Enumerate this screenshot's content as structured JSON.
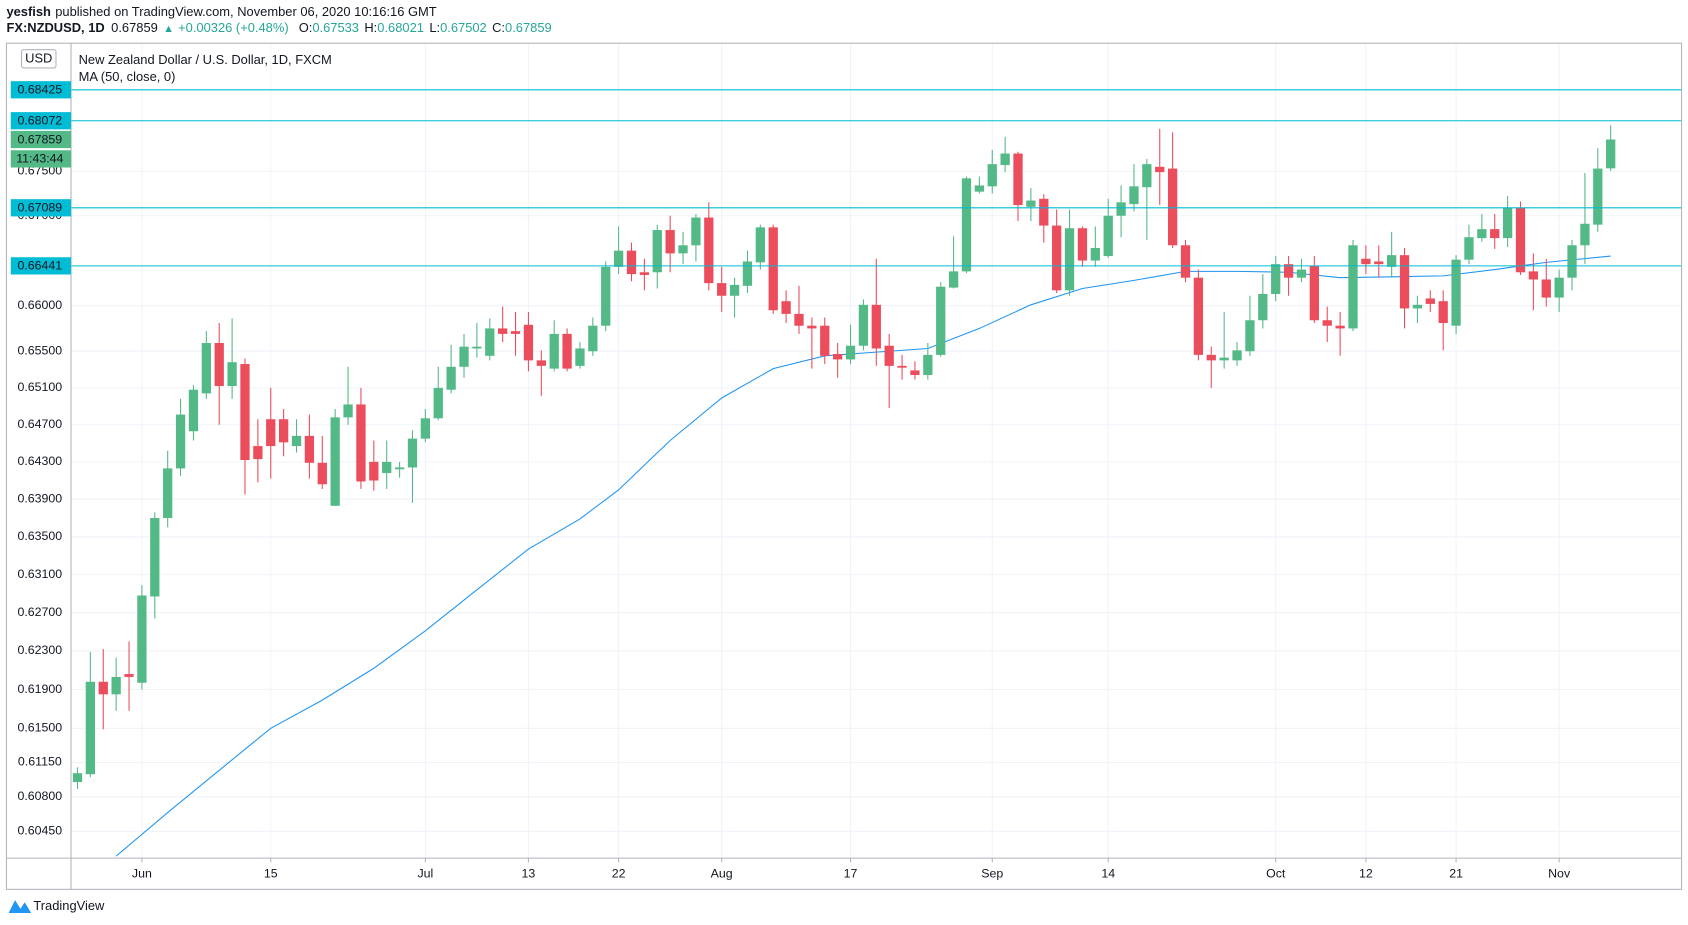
{
  "header": {
    "author": "yesfish",
    "published": "published on TradingView.com, November 06, 2020 10:16:16 GMT",
    "symbol": "FX:NZDUSD, 1D",
    "last": "0.67859",
    "arrow": "▲",
    "change": "+0.00326 (+0.48%)",
    "ohlc": [
      {
        "label": "O:",
        "value": "0.67533"
      },
      {
        "label": "H:",
        "value": "0.68021"
      },
      {
        "label": "L:",
        "value": "0.67502"
      },
      {
        "label": "C:",
        "value": "0.67859"
      }
    ]
  },
  "chart_data": {
    "type": "candlestick",
    "title": "New Zealand Dollar / U.S. Dollar, 1D, FXCM",
    "currency": "USD",
    "up_color": "#53b987",
    "down_color": "#eb4d5c",
    "log_scale": true,
    "grid": true,
    "open": [
      0.6095,
      0.6103,
      0.6198,
      0.6185,
      0.6206,
      0.6197,
      0.6287,
      0.637,
      0.6423,
      0.6463,
      0.6504,
      0.6559,
      0.6512,
      0.6536,
      0.6447,
      0.6476,
      0.6476,
      0.6447,
      0.6458,
      0.6429,
      0.6383,
      0.6478,
      0.6492,
      0.643,
      0.6418,
      0.6422,
      0.6424,
      0.6455,
      0.6477,
      0.6508,
      0.6533,
      0.6553,
      0.6545,
      0.6575,
      0.6572,
      0.6579,
      0.654,
      0.6531,
      0.6569,
      0.6534,
      0.655,
      0.6578,
      0.6643,
      0.6661,
      0.6637,
      0.6637,
      0.6684,
      0.6658,
      0.6667,
      0.6698,
      0.6625,
      0.6611,
      0.6622,
      0.6648,
      0.6687,
      0.6605,
      0.6591,
      0.6578,
      0.6578,
      0.6547,
      0.6541,
      0.6556,
      0.6601,
      0.6556,
      0.6534,
      0.6529,
      0.6524,
      0.6546,
      0.662,
      0.6638,
      0.6727,
      0.6733,
      0.6757,
      0.677,
      0.671,
      0.6719,
      0.6689,
      0.6617,
      0.6686,
      0.665,
      0.6655,
      0.67,
      0.6713,
      0.6732,
      0.6755,
      0.6753,
      0.6667,
      0.6631,
      0.6546,
      0.654,
      0.654,
      0.655,
      0.6584,
      0.6613,
      0.6646,
      0.6631,
      0.6644,
      0.6584,
      0.6578,
      0.6575,
      0.6652,
      0.6649,
      0.6643,
      0.6656,
      0.6597,
      0.6608,
      0.6605,
      0.6578,
      0.6651,
      0.6675,
      0.6685,
      0.6675,
      0.6709,
      0.6638,
      0.6629,
      0.6609,
      0.6631,
      0.6667,
      0.669,
      0.67533
    ],
    "high": [
      0.611,
      0.6229,
      0.6232,
      0.6223,
      0.624,
      0.6299,
      0.6376,
      0.6442,
      0.6498,
      0.6513,
      0.6572,
      0.6581,
      0.6586,
      0.6542,
      0.6476,
      0.651,
      0.6487,
      0.6476,
      0.6481,
      0.6458,
      0.6487,
      0.6533,
      0.651,
      0.6453,
      0.6453,
      0.643,
      0.6464,
      0.6487,
      0.6533,
      0.6557,
      0.6569,
      0.6581,
      0.6586,
      0.6599,
      0.6593,
      0.6593,
      0.6551,
      0.6584,
      0.6575,
      0.656,
      0.6587,
      0.6649,
      0.6688,
      0.667,
      0.6652,
      0.669,
      0.67,
      0.6682,
      0.6702,
      0.6715,
      0.6643,
      0.6631,
      0.6661,
      0.669,
      0.669,
      0.6617,
      0.6622,
      0.6587,
      0.6587,
      0.6559,
      0.6579,
      0.6607,
      0.6652,
      0.6569,
      0.6546,
      0.6539,
      0.6559,
      0.6626,
      0.6677,
      0.6744,
      0.6744,
      0.6774,
      0.6789,
      0.6772,
      0.6731,
      0.6724,
      0.6707,
      0.6707,
      0.6688,
      0.6688,
      0.6719,
      0.6734,
      0.6758,
      0.6764,
      0.6798,
      0.6794,
      0.6673,
      0.664,
      0.6555,
      0.6593,
      0.656,
      0.6611,
      0.6635,
      0.6655,
      0.6655,
      0.6652,
      0.6655,
      0.6599,
      0.6593,
      0.6673,
      0.6667,
      0.6667,
      0.6682,
      0.6664,
      0.6611,
      0.6617,
      0.6617,
      0.6656,
      0.669,
      0.6702,
      0.6702,
      0.6722,
      0.6716,
      0.6658,
      0.6652,
      0.664,
      0.6673,
      0.6748,
      0.6776,
      0.68021
    ],
    "low": [
      0.6088,
      0.61,
      0.6149,
      0.6168,
      0.6168,
      0.619,
      0.6264,
      0.636,
      0.6415,
      0.6453,
      0.6498,
      0.647,
      0.6498,
      0.6395,
      0.6408,
      0.6412,
      0.6436,
      0.644,
      0.6412,
      0.6401,
      0.6383,
      0.647,
      0.6401,
      0.6399,
      0.6401,
      0.6413,
      0.6386,
      0.6451,
      0.6475,
      0.6504,
      0.6521,
      0.6543,
      0.654,
      0.656,
      0.6545,
      0.6528,
      0.6501,
      0.6528,
      0.6528,
      0.6531,
      0.6545,
      0.6572,
      0.6635,
      0.6627,
      0.6617,
      0.6619,
      0.6637,
      0.6646,
      0.6649,
      0.6617,
      0.6593,
      0.6587,
      0.6614,
      0.664,
      0.6591,
      0.6581,
      0.6569,
      0.6531,
      0.6536,
      0.6521,
      0.6536,
      0.6551,
      0.6534,
      0.6488,
      0.6519,
      0.6519,
      0.6519,
      0.6544,
      0.6619,
      0.6636,
      0.6725,
      0.6725,
      0.6749,
      0.6694,
      0.6694,
      0.667,
      0.6614,
      0.6611,
      0.6643,
      0.6643,
      0.6653,
      0.6676,
      0.6705,
      0.6673,
      0.6712,
      0.6664,
      0.6626,
      0.654,
      0.651,
      0.6531,
      0.6534,
      0.6545,
      0.6575,
      0.6605,
      0.6611,
      0.6626,
      0.6581,
      0.656,
      0.6545,
      0.6572,
      0.6635,
      0.6631,
      0.6631,
      0.6575,
      0.6581,
      0.6593,
      0.6551,
      0.6569,
      0.6646,
      0.6671,
      0.6663,
      0.6665,
      0.6634,
      0.6595,
      0.6599,
      0.6593,
      0.6617,
      0.6646,
      0.6682,
      0.67502
    ],
    "close": [
      0.6104,
      0.6198,
      0.6185,
      0.6203,
      0.6203,
      0.6288,
      0.637,
      0.6423,
      0.6481,
      0.6508,
      0.6559,
      0.6512,
      0.6538,
      0.6432,
      0.6433,
      0.6447,
      0.6451,
      0.6458,
      0.6429,
      0.6406,
      0.6478,
      0.6492,
      0.6409,
      0.641,
      0.643,
      0.6424,
      0.6455,
      0.6477,
      0.651,
      0.6533,
      0.6555,
      0.6555,
      0.6575,
      0.6569,
      0.6569,
      0.654,
      0.6534,
      0.6569,
      0.6531,
      0.6553,
      0.6578,
      0.6643,
      0.6661,
      0.6635,
      0.6634,
      0.6684,
      0.6658,
      0.6667,
      0.6698,
      0.6625,
      0.6611,
      0.6623,
      0.6649,
      0.6687,
      0.6595,
      0.6591,
      0.6578,
      0.6575,
      0.6545,
      0.6541,
      0.6556,
      0.6601,
      0.6553,
      0.6534,
      0.6532,
      0.6524,
      0.6546,
      0.6621,
      0.6638,
      0.6742,
      0.6734,
      0.6758,
      0.677,
      0.6712,
      0.6717,
      0.6689,
      0.6617,
      0.6686,
      0.665,
      0.6664,
      0.67,
      0.6715,
      0.6733,
      0.6758,
      0.6749,
      0.6667,
      0.6631,
      0.6546,
      0.654,
      0.6543,
      0.6551,
      0.6584,
      0.6613,
      0.6646,
      0.6631,
      0.664,
      0.6584,
      0.6578,
      0.6575,
      0.6667,
      0.6646,
      0.6646,
      0.6656,
      0.6597,
      0.6601,
      0.6602,
      0.6581,
      0.6651,
      0.6676,
      0.6685,
      0.6675,
      0.6709,
      0.6637,
      0.6629,
      0.6609,
      0.6631,
      0.6667,
      0.6691,
      0.6753,
      0.67859
    ],
    "moving_average": {
      "name": "MA (50, close, 0)",
      "color": "#2196f3",
      "x": [
        3,
        7,
        11,
        15,
        19,
        23,
        27,
        31,
        35,
        39,
        42,
        46,
        50,
        54,
        58,
        62,
        66,
        70,
        74,
        78,
        82,
        86,
        90,
        94,
        98,
        102,
        106,
        110,
        114,
        119
      ],
      "values": [
        0.602,
        0.6064,
        0.6107,
        0.615,
        0.6179,
        0.6212,
        0.6251,
        0.6294,
        0.6337,
        0.6369,
        0.64,
        0.6453,
        0.6499,
        0.6531,
        0.6545,
        0.6549,
        0.6553,
        0.6575,
        0.6601,
        0.6619,
        0.6628,
        0.6638,
        0.6638,
        0.6637,
        0.6631,
        0.6632,
        0.6633,
        0.664,
        0.6648,
        0.6655
      ]
    },
    "price_lines": {
      "color": "#00bcd4",
      "values": [
        0.68425,
        0.68072,
        0.67089,
        0.66441
      ]
    },
    "last_price": {
      "value": 0.67859,
      "countdown": "11:43:44",
      "color": "#53b987"
    },
    "ylim": [
      0.6018,
      0.6896
    ],
    "yticks": [
      {
        "value": 0.6045,
        "label": "0.60450"
      },
      {
        "value": 0.608,
        "label": "0.60800"
      },
      {
        "value": 0.6115,
        "label": "0.61150"
      },
      {
        "value": 0.615,
        "label": "0.61500"
      },
      {
        "value": 0.619,
        "label": "0.61900"
      },
      {
        "value": 0.623,
        "label": "0.62300"
      },
      {
        "value": 0.627,
        "label": "0.62700"
      },
      {
        "value": 0.631,
        "label": "0.63100"
      },
      {
        "value": 0.635,
        "label": "0.63500"
      },
      {
        "value": 0.639,
        "label": "0.63900"
      },
      {
        "value": 0.643,
        "label": "0.64300"
      },
      {
        "value": 0.647,
        "label": "0.64700"
      },
      {
        "value": 0.651,
        "label": "0.65100"
      },
      {
        "value": 0.655,
        "label": "0.65500"
      },
      {
        "value": 0.66,
        "label": "0.66000"
      },
      {
        "value": 0.67,
        "label": "0.67000"
      },
      {
        "value": 0.675,
        "label": "0.67500"
      }
    ],
    "xlim": [
      -0.5,
      124.5
    ],
    "xticks": [
      {
        "value": 5,
        "label": "Jun"
      },
      {
        "value": 15,
        "label": "15"
      },
      {
        "value": 27,
        "label": "Jul"
      },
      {
        "value": 35,
        "label": "13"
      },
      {
        "value": 42,
        "label": "22"
      },
      {
        "value": 50,
        "label": "Aug"
      },
      {
        "value": 60,
        "label": "17"
      },
      {
        "value": 71,
        "label": "Sep"
      },
      {
        "value": 80,
        "label": "14"
      },
      {
        "value": 93,
        "label": "Oct"
      },
      {
        "value": 100,
        "label": "12"
      },
      {
        "value": 107,
        "label": "21"
      },
      {
        "value": 115,
        "label": "Nov"
      }
    ]
  },
  "footer": {
    "brand": "TradingView"
  }
}
